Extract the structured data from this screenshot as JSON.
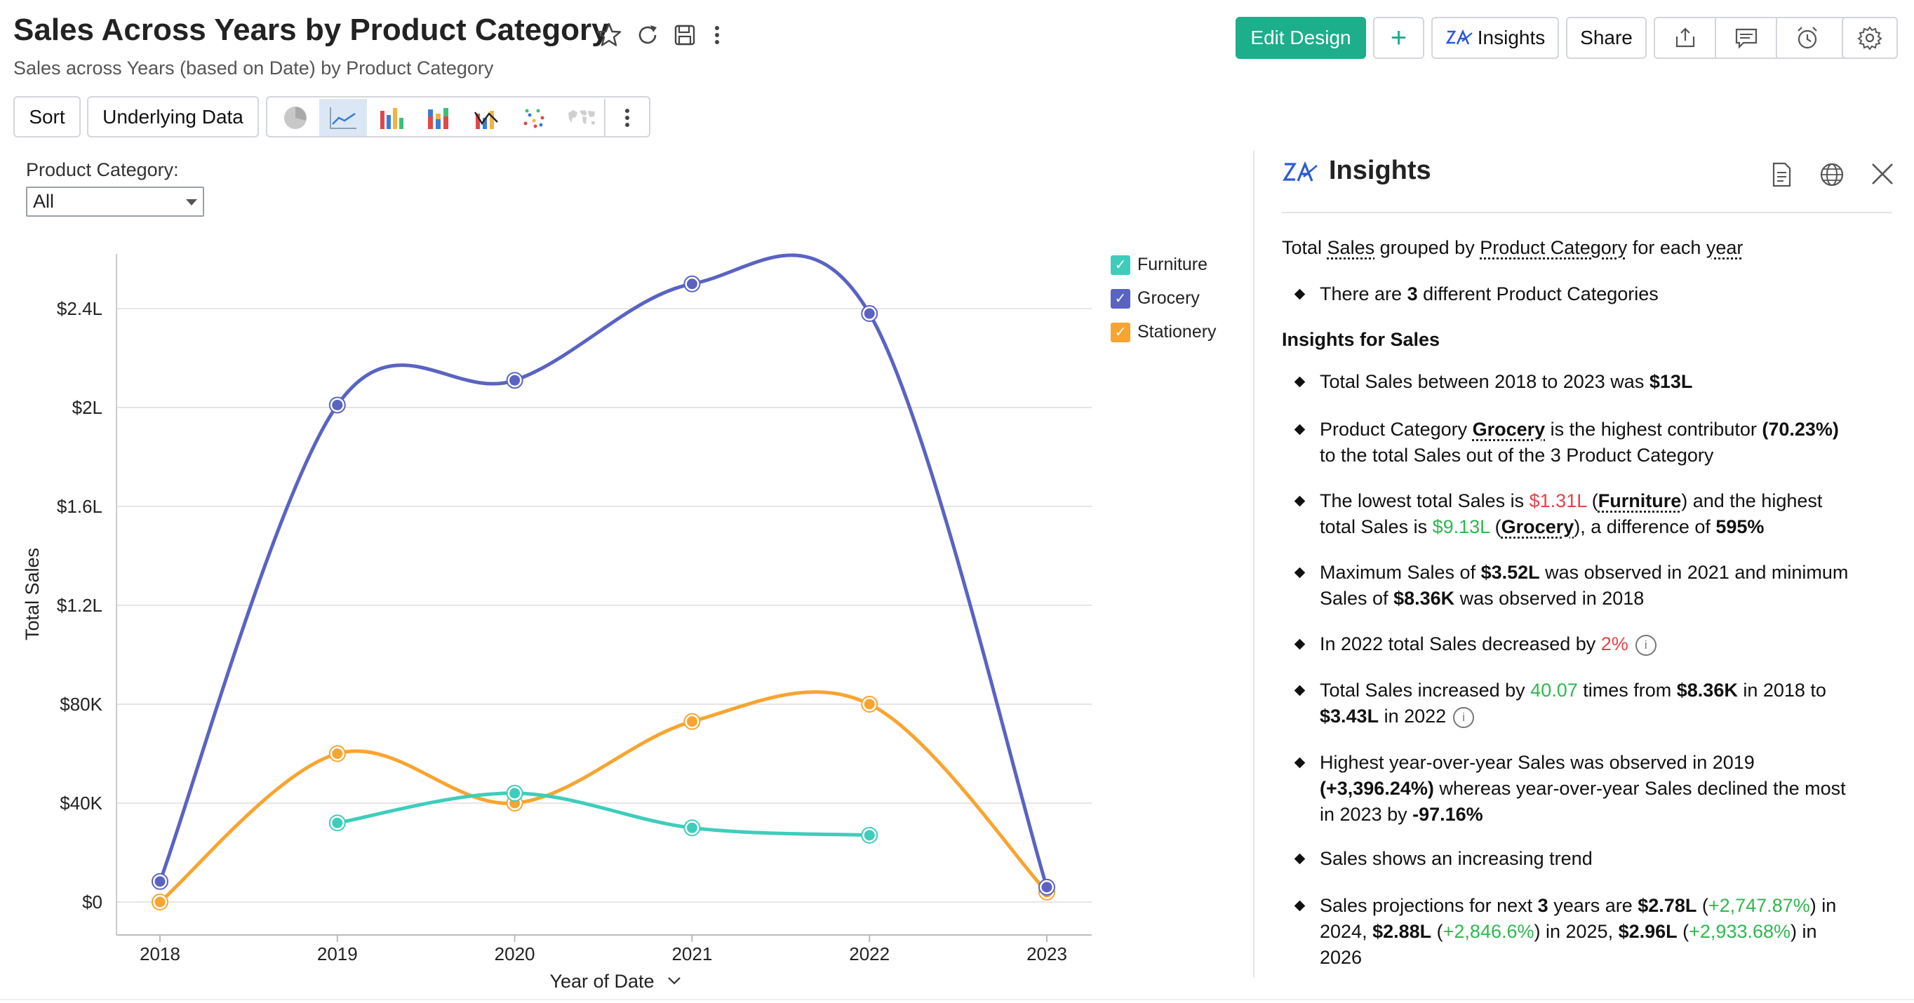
{
  "header": {
    "title": "Sales Across Years by Product Category",
    "subtitle": "Sales across Years (based on Date) by Product Category",
    "edit_design": "Edit Design",
    "insights": "Insights",
    "share": "Share"
  },
  "toolbar": {
    "sort": "Sort",
    "underlying_data": "Underlying Data"
  },
  "filter": {
    "label": "Product Category:",
    "value": "All"
  },
  "colors": {
    "furniture": "#3ecdbb",
    "grocery": "#5a63c2",
    "stationery": "#f7a530",
    "primary": "#1dae8c"
  },
  "chart_data": {
    "type": "line",
    "x": [
      "2018",
      "2019",
      "2020",
      "2021",
      "2022",
      "2023"
    ],
    "xlabel": "Year of Date",
    "ylabel": "Total Sales",
    "y_ticks": [
      "$0",
      "$40K",
      "$80K",
      "$1.2L",
      "$1.6L",
      "$2L",
      "$2.4L"
    ],
    "y_tick_values": [
      0,
      40000,
      80000,
      120000,
      160000,
      200000,
      240000
    ],
    "legend": [
      "Furniture",
      "Grocery",
      "Stationery"
    ],
    "legend_position": "top-right",
    "series": [
      {
        "name": "Furniture",
        "color": "#3ecdbb",
        "values": [
          null,
          32000,
          44000,
          30000,
          27000,
          null
        ]
      },
      {
        "name": "Grocery",
        "color": "#5a63c2",
        "values": [
          8300,
          201000,
          211000,
          250000,
          238000,
          6000
        ]
      },
      {
        "name": "Stationery",
        "color": "#f7a530",
        "values": [
          0,
          60000,
          40000,
          73000,
          80000,
          4000
        ]
      }
    ]
  },
  "insights": {
    "title": "Insights",
    "intro": [
      "Total ",
      "Sales",
      " grouped by ",
      "Product Category",
      " for each ",
      "year"
    ],
    "count_prefix": "There are ",
    "count_value": "3",
    "count_suffix": " different Product Categories",
    "section_heading": "Insights for Sales",
    "i1": [
      "Total Sales between 2018 to 2023 was ",
      "$13L"
    ],
    "i2_l1": [
      "Product Category ",
      "Grocery",
      " is the highest contributor ",
      "(70.23%)"
    ],
    "i2_l2": "to the total Sales out of the 3 Product Category",
    "i3_l1": [
      "The lowest total Sales is ",
      "$1.31L",
      " (",
      "Furniture",
      ") and the highest"
    ],
    "i3_l2": [
      "total Sales is ",
      "$9.13L",
      " (",
      "Grocery",
      "), a difference of ",
      "595%"
    ],
    "i4_l1": [
      "Maximum Sales of ",
      "$3.52L",
      " was observed in 2021 and minimum"
    ],
    "i4_l2": [
      "Sales of ",
      "$8.36K",
      " was observed in 2018"
    ],
    "i5": [
      "In 2022 total Sales decreased by ",
      "2%"
    ],
    "i6_l1": [
      "Total Sales increased by ",
      "40.07",
      " times from ",
      "$8.36K",
      " in 2018 to"
    ],
    "i6_l2": [
      "$3.43L",
      " in 2022"
    ],
    "i7_l1": "Highest year-over-year Sales was observed in 2019",
    "i7_l2": [
      "(+3,396.24%)",
      " whereas year-over-year Sales declined the most"
    ],
    "i7_l3": [
      "in 2023 by ",
      "-97.16%"
    ],
    "i8": "Sales shows an increasing trend",
    "i9_l1": [
      "Sales projections for next ",
      "3",
      " years are ",
      "$2.78L",
      " (",
      "+2,747.87%",
      ") in"
    ],
    "i9_l2": [
      "2024, ",
      "$2.88L",
      " (",
      "+2,846.6%",
      ") in 2025, ",
      "$2.96L",
      " (",
      "+2,933.68%",
      ") in"
    ],
    "i9_l3": "2026",
    "info_glyph": "i"
  }
}
